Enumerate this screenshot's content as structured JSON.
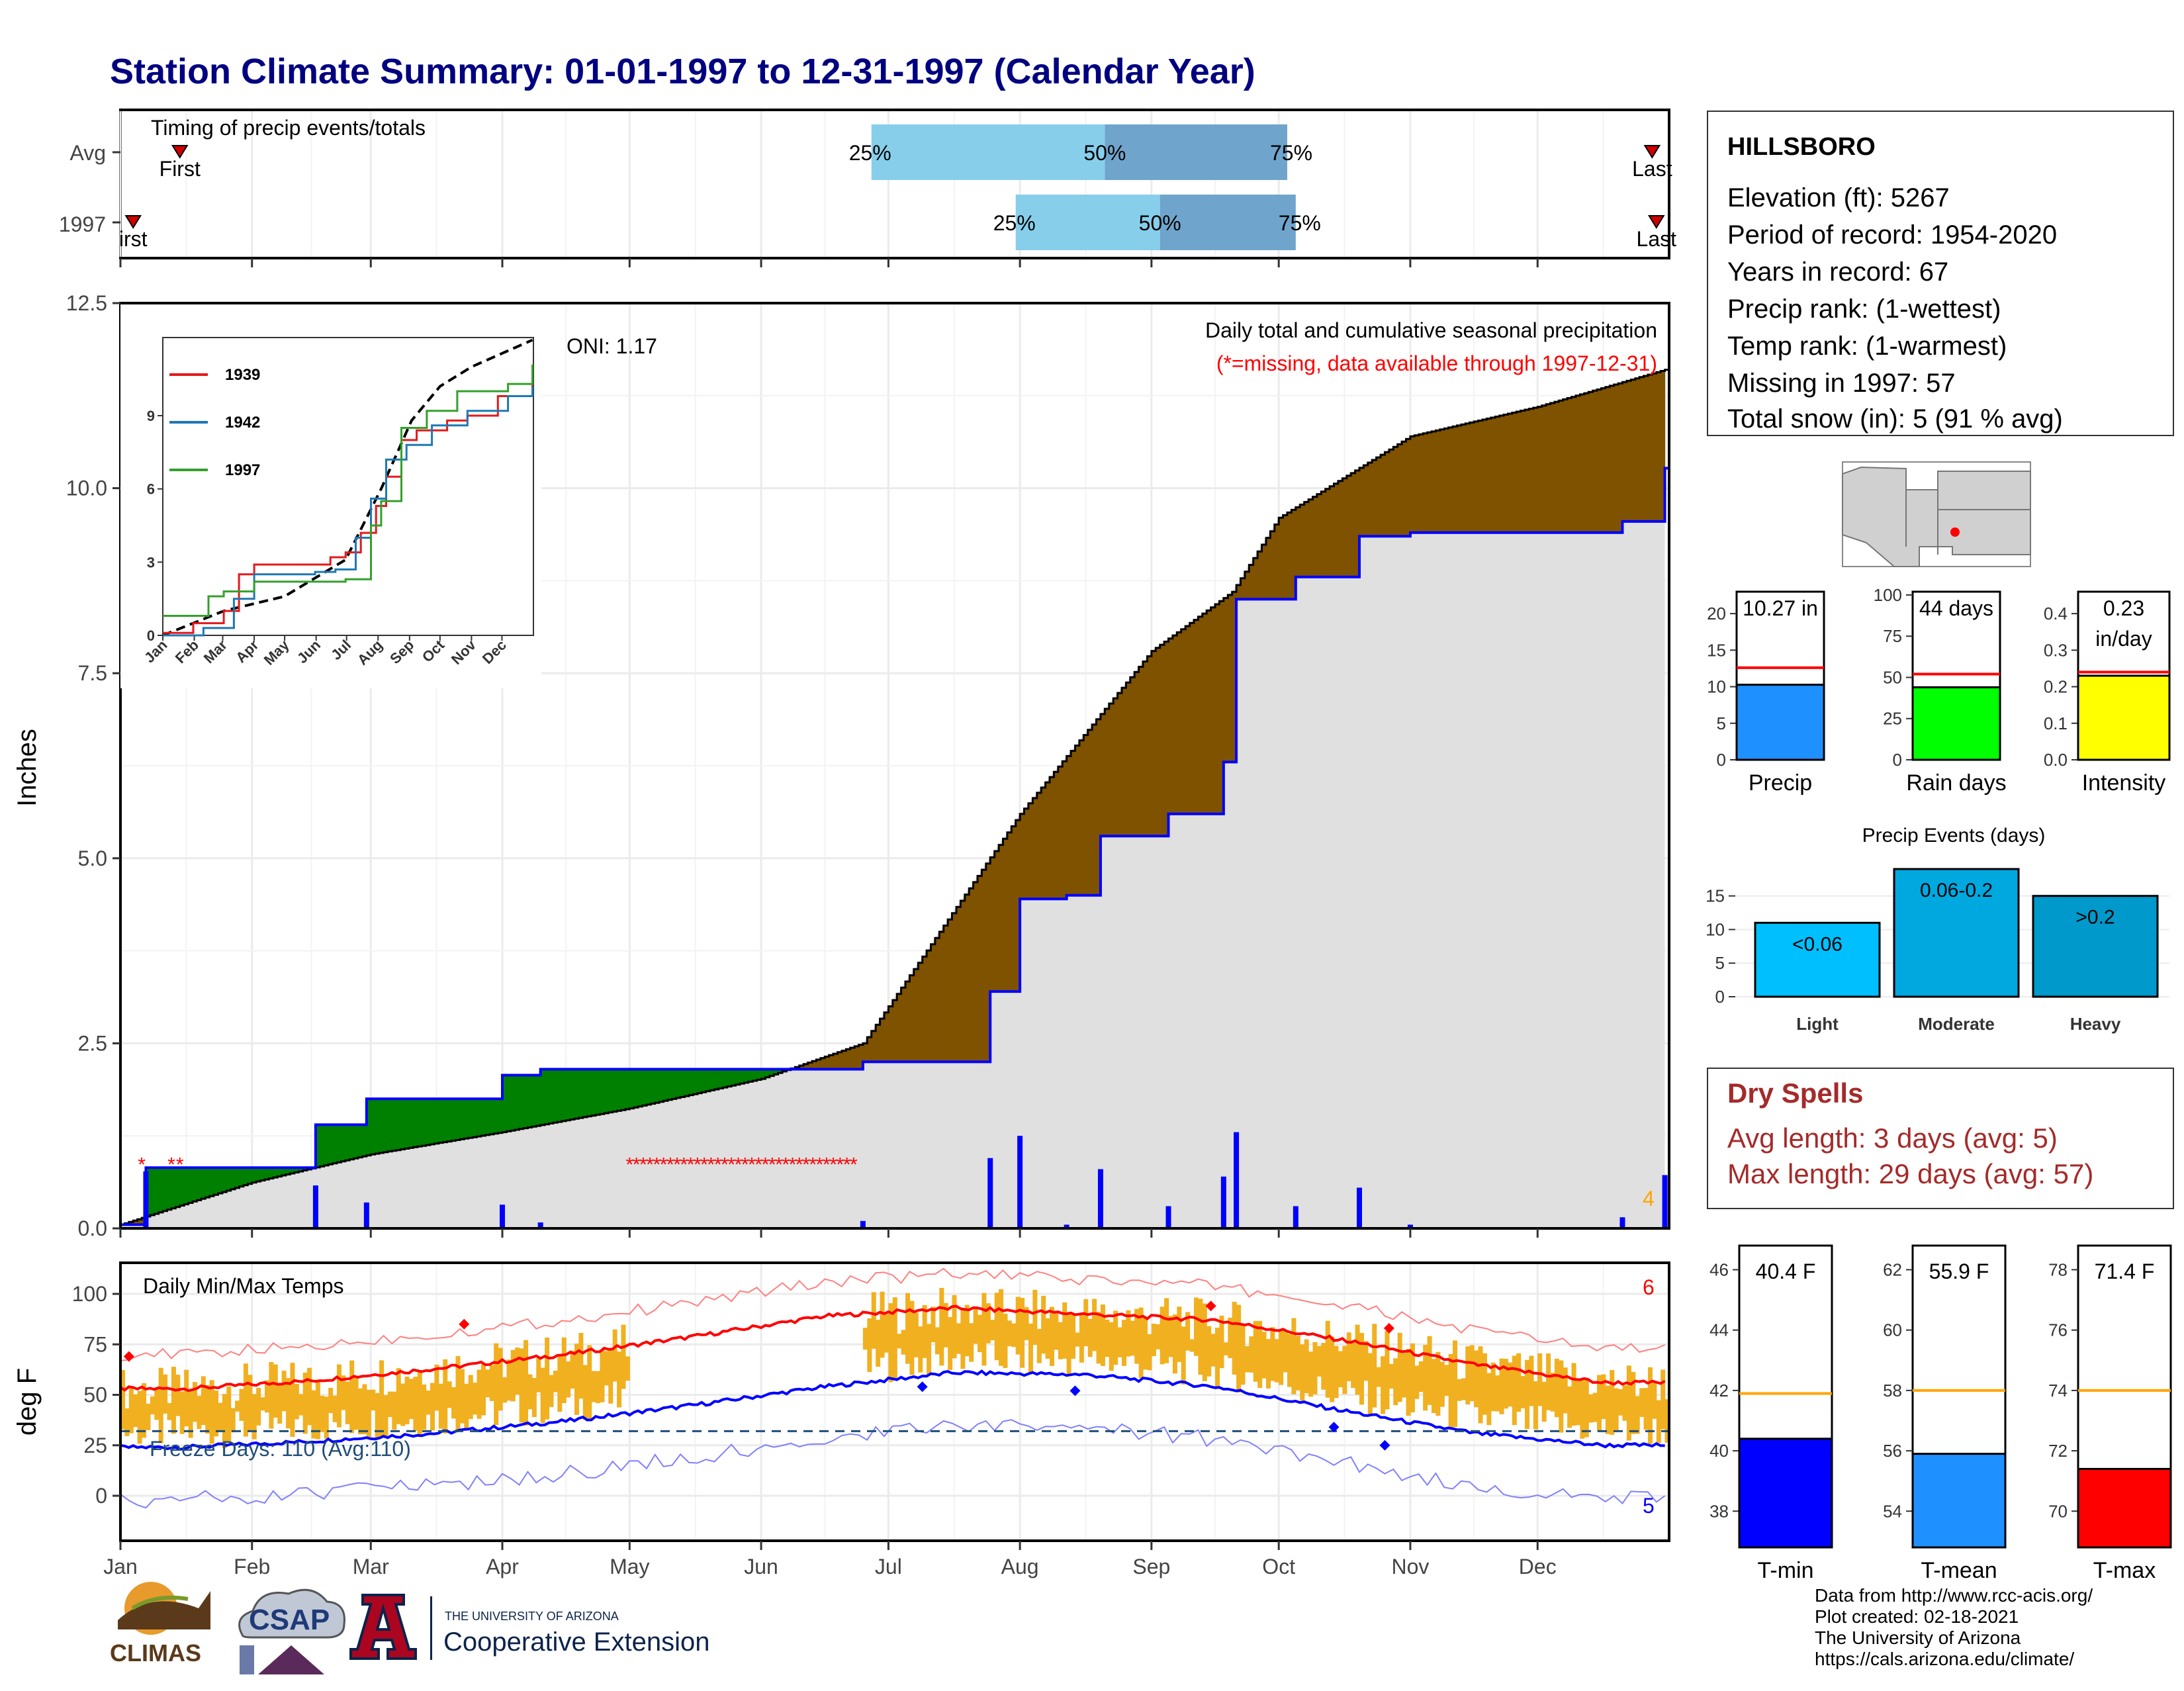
{
  "title": "Station Climate Summary: 01-01-1997 to 12-31-1997 (Calendar Year)",
  "months": [
    "Jan",
    "Feb",
    "Mar",
    "Apr",
    "May",
    "Jun",
    "Jul",
    "Aug",
    "Sep",
    "Oct",
    "Nov",
    "Dec"
  ],
  "timing": {
    "label": "Timing of precip events/totals",
    "rows": [
      {
        "name": "Avg",
        "first_doy": 14,
        "last_doy": 361,
        "p25_doy": 177,
        "p50_doy": 232,
        "p75_doy": 275,
        "p25": "25%",
        "p50": "50%",
        "p75": "75%",
        "first": "First",
        "last": "Last"
      },
      {
        "name": "1997",
        "first_doy": 3,
        "last_doy": 362,
        "p25_doy": 211,
        "p50_doy": 245,
        "p75_doy": 277,
        "p25": "25%",
        "p50": "50%",
        "p75": "75%",
        "first": "irst",
        "last": "Last"
      }
    ]
  },
  "precip_panel": {
    "ylabel": "Inches",
    "yticks": [
      "0.0",
      "2.5",
      "5.0",
      "7.5",
      "10.0",
      "12.5"
    ],
    "ymax": 12.5,
    "oni": "ONI: 1.17",
    "note": "Daily total and cumulative seasonal precipitation",
    "missing_note": "(*=missing, data available through 1997-12-31)",
    "count_label": "4",
    "colors": {
      "above": "#008000",
      "below": "#7f5200",
      "avg_fill": "#e0e0e0",
      "obs_line": "#0000ff",
      "missing": "#ff0000",
      "daily": "#0000ff"
    }
  },
  "inset": {
    "yticks": [
      "0",
      "3",
      "6",
      "9"
    ],
    "ymax": 12.2,
    "months": [
      "Jan",
      "Feb",
      "Mar",
      "Apr",
      "May",
      "Jun",
      "Jul",
      "Aug",
      "Sep",
      "Oct",
      "Nov",
      "Dec"
    ],
    "legend": [
      {
        "name": "1939",
        "color": "#e31a1c"
      },
      {
        "name": "1942",
        "color": "#1f78b4"
      },
      {
        "name": "1997",
        "color": "#33a02c"
      }
    ]
  },
  "temp_panel": {
    "ylabel": "deg F",
    "yticks": [
      "0",
      "25",
      "50",
      "75",
      "100"
    ],
    "label": "Daily Min/Max Temps",
    "freeze_label": "Freeze Days: 110 (Avg:110)",
    "count_high": "6",
    "count_low": "5",
    "freeze_line": 32
  },
  "station": {
    "name": "HILLSBORO",
    "lines": [
      "Elevation (ft): 5267",
      "Period of record: 1954-2020",
      "Years in record: 67",
      "Precip rank:  (1-wettest)",
      "Temp rank:  (1-warmest)",
      "Missing in 1997: 57",
      "Total snow (in): 5 (91 % avg)"
    ]
  },
  "summary_bars": [
    {
      "label": "Precip",
      "value_text": "10.27 in",
      "value_text2": "",
      "value": 10.27,
      "avg": 12.6,
      "ymax": 23,
      "yticks": [
        "0",
        "5",
        "10",
        "15",
        "20"
      ],
      "tickvals": [
        0,
        5,
        10,
        15,
        20
      ],
      "color": "#1e90ff"
    },
    {
      "label": "Rain days",
      "value_text": "44 days",
      "value_text2": "",
      "value": 44,
      "avg": 52,
      "ymax": 102,
      "yticks": [
        "0",
        "25",
        "50",
        "75",
        "100"
      ],
      "tickvals": [
        0,
        25,
        50,
        75,
        100
      ],
      "color": "#00ff00"
    },
    {
      "label": "Intensity",
      "value_text": "0.23",
      "value_text2": "in/day",
      "value": 0.23,
      "avg": 0.24,
      "ymax": 0.46,
      "yticks": [
        "0.0",
        "0.1",
        "0.2",
        "0.3",
        "0.4"
      ],
      "tickvals": [
        0,
        0.1,
        0.2,
        0.3,
        0.4
      ],
      "color": "#ffff00"
    }
  ],
  "events": {
    "title": "Precip Events (days)",
    "yticks": [
      "0",
      "5",
      "10",
      "15"
    ],
    "bars": [
      {
        "label": "Light",
        "range": "<0.06",
        "value": 11,
        "color": "#00bfff"
      },
      {
        "label": "Moderate",
        "range": "0.06-0.2",
        "value": 19,
        "color": "#00a8e0"
      },
      {
        "label": "Heavy",
        "range": ">0.2",
        "value": 15,
        "color": "#0099cc"
      }
    ]
  },
  "dry_spells": {
    "title": "Dry Spells",
    "avg": "Avg length: 3 days (avg: 5)",
    "max": "Max length: 29 days (avg: 57)",
    "color": "#a52a2a"
  },
  "temp_bars": [
    {
      "label": "T-min",
      "value_text": "40.4 F",
      "value": 40.4,
      "avg": 41.9,
      "ymin": 36.8,
      "ymax": 46.8,
      "yticks": [
        "38",
        "40",
        "42",
        "44",
        "46"
      ],
      "tickvals": [
        38,
        40,
        42,
        44,
        46
      ],
      "color": "#0000ff"
    },
    {
      "label": "T-mean",
      "value_text": "55.9 F",
      "value": 55.9,
      "avg": 58,
      "ymin": 52.8,
      "ymax": 62.8,
      "yticks": [
        "54",
        "56",
        "58",
        "60",
        "62"
      ],
      "tickvals": [
        54,
        56,
        58,
        60,
        62
      ],
      "color": "#1e90ff"
    },
    {
      "label": "T-max",
      "value_text": "71.4 F",
      "value": 71.4,
      "avg": 74,
      "ymin": 68.8,
      "ymax": 78.8,
      "yticks": [
        "70",
        "72",
        "74",
        "76",
        "78"
      ],
      "tickvals": [
        70,
        72,
        74,
        76,
        78
      ],
      "color": "#ff0000"
    }
  ],
  "footer": {
    "lines": [
      "Data from http://www.rcc-acis.org/",
      "Plot created: 02-18-2021",
      "The University of Arizona",
      "https://cals.arizona.edu/climate/"
    ],
    "logo_climas": "CLIMAS",
    "logo_csap": "CSAP",
    "logo_ua_small": "THE UNIVERSITY OF ARIZONA",
    "logo_ua_big": "Cooperative Extension"
  },
  "chart_data": [
    {
      "type": "area",
      "title": "Daily total and cumulative seasonal precipitation",
      "ylabel": "Inches",
      "ylim": [
        0,
        12.5
      ],
      "series": [
        {
          "name": "average cumulative",
          "x": [
            "Jan 1",
            "Feb 1",
            "Mar 1",
            "Apr 1",
            "May 1",
            "Jun 1",
            "Jun 25",
            "Jul 1",
            "Aug 1",
            "Sep 1",
            "Sep 20",
            "Oct 1",
            "Nov 1",
            "Dec 1",
            "Dec 31"
          ],
          "values": [
            0.05,
            0.62,
            1.0,
            1.3,
            1.62,
            2.02,
            2.5,
            3.0,
            5.6,
            7.8,
            8.6,
            9.6,
            10.7,
            11.1,
            11.6
          ]
        },
        {
          "name": "1997 cumulative",
          "x": [
            "Jan 1",
            "Jan 7",
            "Feb 12",
            "Feb 16",
            "Feb 28",
            "Apr 1",
            "Apr 10",
            "Jun 25",
            "Jul 20",
            "Jul 25",
            "Aug 1",
            "Aug 12",
            "Aug 20",
            "Sep 5",
            "Sep 18",
            "Sep 21",
            "Oct 5",
            "Oct 20",
            "Nov 1",
            "Dec 21",
            "Dec 31"
          ],
          "values": [
            0.05,
            0.82,
            0.82,
            1.4,
            1.75,
            2.07,
            2.15,
            2.25,
            2.25,
            3.2,
            4.45,
            4.5,
            5.3,
            5.6,
            6.3,
            8.5,
            8.8,
            9.35,
            9.4,
            9.55,
            10.27
          ]
        }
      ],
      "missing_days": [
        "Jan 6",
        "Jan 13",
        "Jan 15",
        "May 1 - Jun 24"
      ]
    },
    {
      "type": "line",
      "title": "Daily Min/Max Temps",
      "ylabel": "deg F",
      "series": [
        {
          "name": "avg max",
          "x": [
            "Jan",
            "Feb",
            "Mar",
            "Apr",
            "May",
            "Jun",
            "Jul",
            "Aug",
            "Sep",
            "Oct",
            "Nov",
            "Dec"
          ],
          "values": [
            53,
            57,
            63,
            70,
            79,
            89,
            93,
            90,
            87,
            77,
            65,
            56
          ]
        },
        {
          "name": "avg min",
          "x": [
            "Jan",
            "Feb",
            "Mar",
            "Apr",
            "May",
            "Jun",
            "Jul",
            "Aug",
            "Sep",
            "Oct",
            "Nov",
            "Dec"
          ],
          "values": [
            24,
            27,
            31,
            37,
            45,
            54,
            61,
            60,
            54,
            42,
            31,
            25
          ]
        }
      ],
      "freeze_line": 32
    }
  ]
}
